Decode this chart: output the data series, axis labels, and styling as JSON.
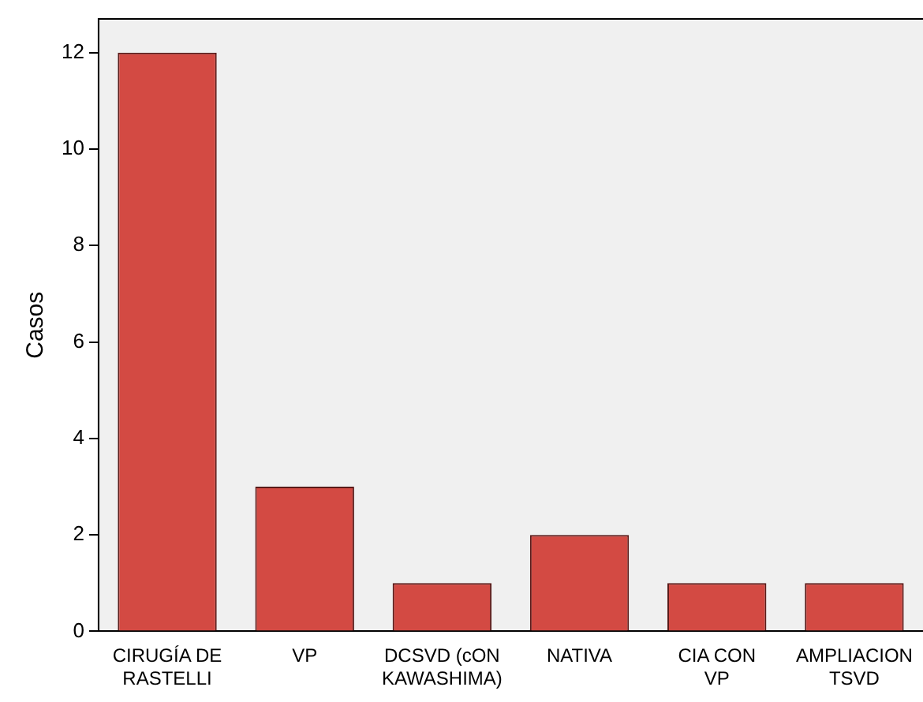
{
  "chart_data": {
    "type": "bar",
    "ylabel": "Casos",
    "categories": [
      "CIRUGÍA DE RASTELLI",
      "VP",
      "DCSVD (cON KAWASHIMA)",
      "NATIVA",
      "CIA CON VP",
      "AMPLIACION TSVD"
    ],
    "values": [
      12,
      3,
      1,
      2,
      1,
      1
    ],
    "color": "#d34a43",
    "ylim": [
      0,
      12.7
    ],
    "yticks": [
      0,
      2,
      4,
      6,
      8,
      10,
      12
    ],
    "grid": false,
    "legend": false
  }
}
